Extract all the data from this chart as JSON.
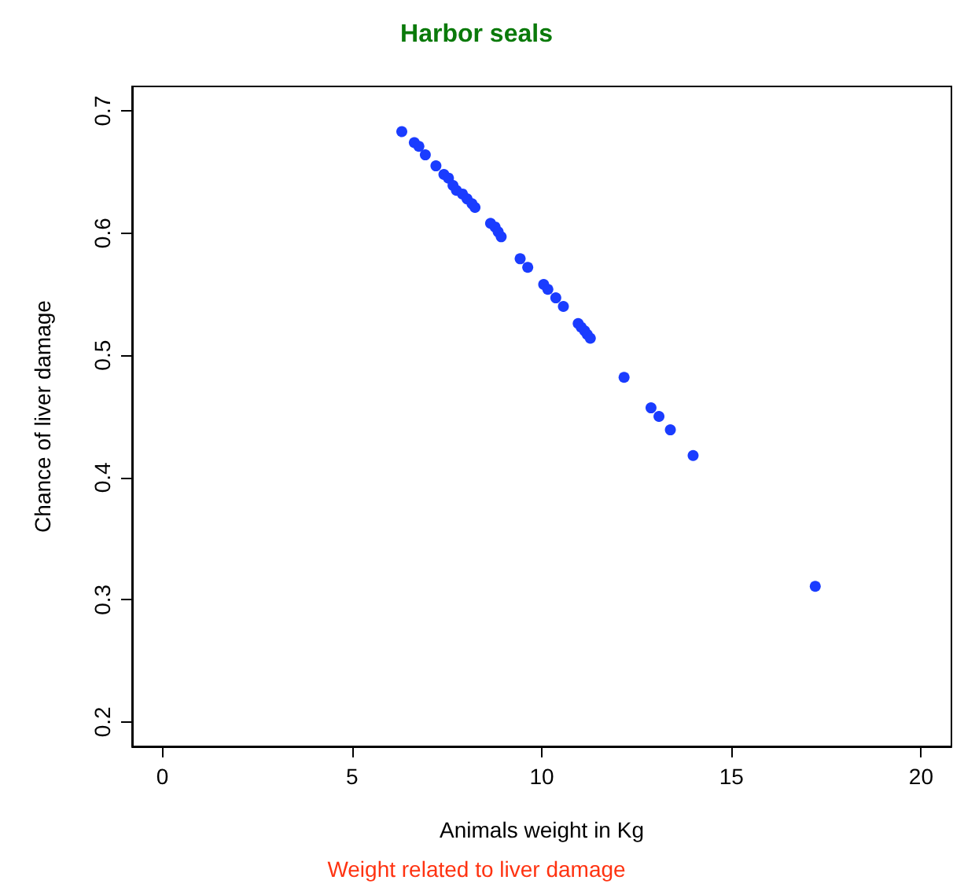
{
  "chart_data": {
    "type": "scatter",
    "title": "Harbor seals",
    "xlabel": "Animals weight in Kg",
    "ylabel": "Chance of liver damage",
    "annotations": [
      "Weight related to liver damage"
    ],
    "series": [
      {
        "color": "#1a3cff",
        "x": [
          6.31,
          6.64,
          6.76,
          6.93,
          7.21,
          7.42,
          7.54,
          7.66,
          7.75,
          7.91,
          8.03,
          8.16,
          8.24,
          8.65,
          8.77,
          8.85,
          8.93,
          9.43,
          9.63,
          10.05,
          10.16,
          10.37,
          10.57,
          10.96,
          11.04,
          11.13,
          11.2,
          11.28,
          12.17,
          12.88,
          13.09,
          13.39,
          13.99,
          17.21
        ],
        "values": [
          0.683,
          0.674,
          0.671,
          0.664,
          0.655,
          0.648,
          0.645,
          0.639,
          0.635,
          0.632,
          0.628,
          0.624,
          0.621,
          0.608,
          0.605,
          0.601,
          0.597,
          0.579,
          0.572,
          0.558,
          0.554,
          0.547,
          0.54,
          0.526,
          0.523,
          0.52,
          0.517,
          0.514,
          0.482,
          0.457,
          0.45,
          0.439,
          0.418,
          0.311
        ]
      }
    ],
    "xlim": [
      -0.8,
      20.8
    ],
    "ylim": [
      0.18,
      0.72
    ],
    "xticks": [
      0,
      5,
      10,
      15,
      20
    ],
    "yticks": [
      0.2,
      0.3,
      0.4,
      0.5,
      0.6,
      0.7
    ],
    "marker": "circle"
  }
}
